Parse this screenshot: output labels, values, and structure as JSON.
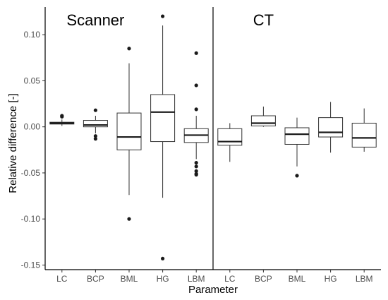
{
  "chart_data": {
    "type": "boxplot",
    "xlabel": "Parameter",
    "ylabel": "Relative difference [-]",
    "ylim": [
      -0.155,
      0.13
    ],
    "yticks": [
      0.1,
      0.05,
      0.0,
      -0.05,
      -0.1,
      -0.15
    ],
    "ytick_labels": [
      "0.10",
      "0.05",
      "0.00",
      "-0.05",
      "-0.10",
      "-0.15"
    ],
    "grid": false,
    "colors": {
      "box_fill": "#ffffff",
      "box_stroke": "#333333",
      "median": "#1a1a1a",
      "outlier": "#1a1a1a",
      "axis": "#000000"
    },
    "panels": [
      {
        "title": "Scanner",
        "categories": [
          "LC",
          "BCP",
          "BML",
          "HG",
          "LBM"
        ],
        "boxes": [
          {
            "q1": 0.003,
            "median": 0.004,
            "q3": 0.005,
            "whisker_low": 0.001,
            "whisker_high": 0.008,
            "outliers": [
              0.011,
              0.012
            ]
          },
          {
            "q1": 0.0,
            "median": 0.002,
            "q3": 0.007,
            "whisker_low": -0.007,
            "whisker_high": 0.012,
            "outliers": [
              0.018,
              -0.01,
              -0.013
            ]
          },
          {
            "q1": -0.025,
            "median": -0.011,
            "q3": 0.015,
            "whisker_low": -0.074,
            "whisker_high": 0.069,
            "outliers": [
              0.085,
              -0.1
            ]
          },
          {
            "q1": -0.016,
            "median": 0.016,
            "q3": 0.035,
            "whisker_low": -0.077,
            "whisker_high": 0.11,
            "outliers": [
              0.12,
              -0.143
            ]
          },
          {
            "q1": -0.017,
            "median": -0.009,
            "q3": -0.002,
            "whisker_low": -0.035,
            "whisker_high": 0.012,
            "outliers": [
              0.08,
              0.045,
              0.019,
              -0.039,
              -0.043,
              -0.048,
              -0.051,
              -0.052
            ]
          }
        ]
      },
      {
        "title": "CT",
        "categories": [
          "LC",
          "BCP",
          "BML",
          "HG",
          "LBM"
        ],
        "boxes": [
          {
            "q1": -0.02,
            "median": -0.016,
            "q3": -0.002,
            "whisker_low": -0.038,
            "whisker_high": 0.004,
            "outliers": []
          },
          {
            "q1": 0.001,
            "median": 0.004,
            "q3": 0.012,
            "whisker_low": 0.0,
            "whisker_high": 0.022,
            "outliers": []
          },
          {
            "q1": -0.019,
            "median": -0.008,
            "q3": -0.001,
            "whisker_low": -0.043,
            "whisker_high": 0.01,
            "outliers": [
              -0.053
            ]
          },
          {
            "q1": -0.011,
            "median": -0.006,
            "q3": 0.01,
            "whisker_low": -0.028,
            "whisker_high": 0.027,
            "outliers": []
          },
          {
            "q1": -0.022,
            "median": -0.012,
            "q3": 0.004,
            "whisker_low": -0.027,
            "whisker_high": 0.02,
            "outliers": []
          }
        ]
      }
    ]
  }
}
